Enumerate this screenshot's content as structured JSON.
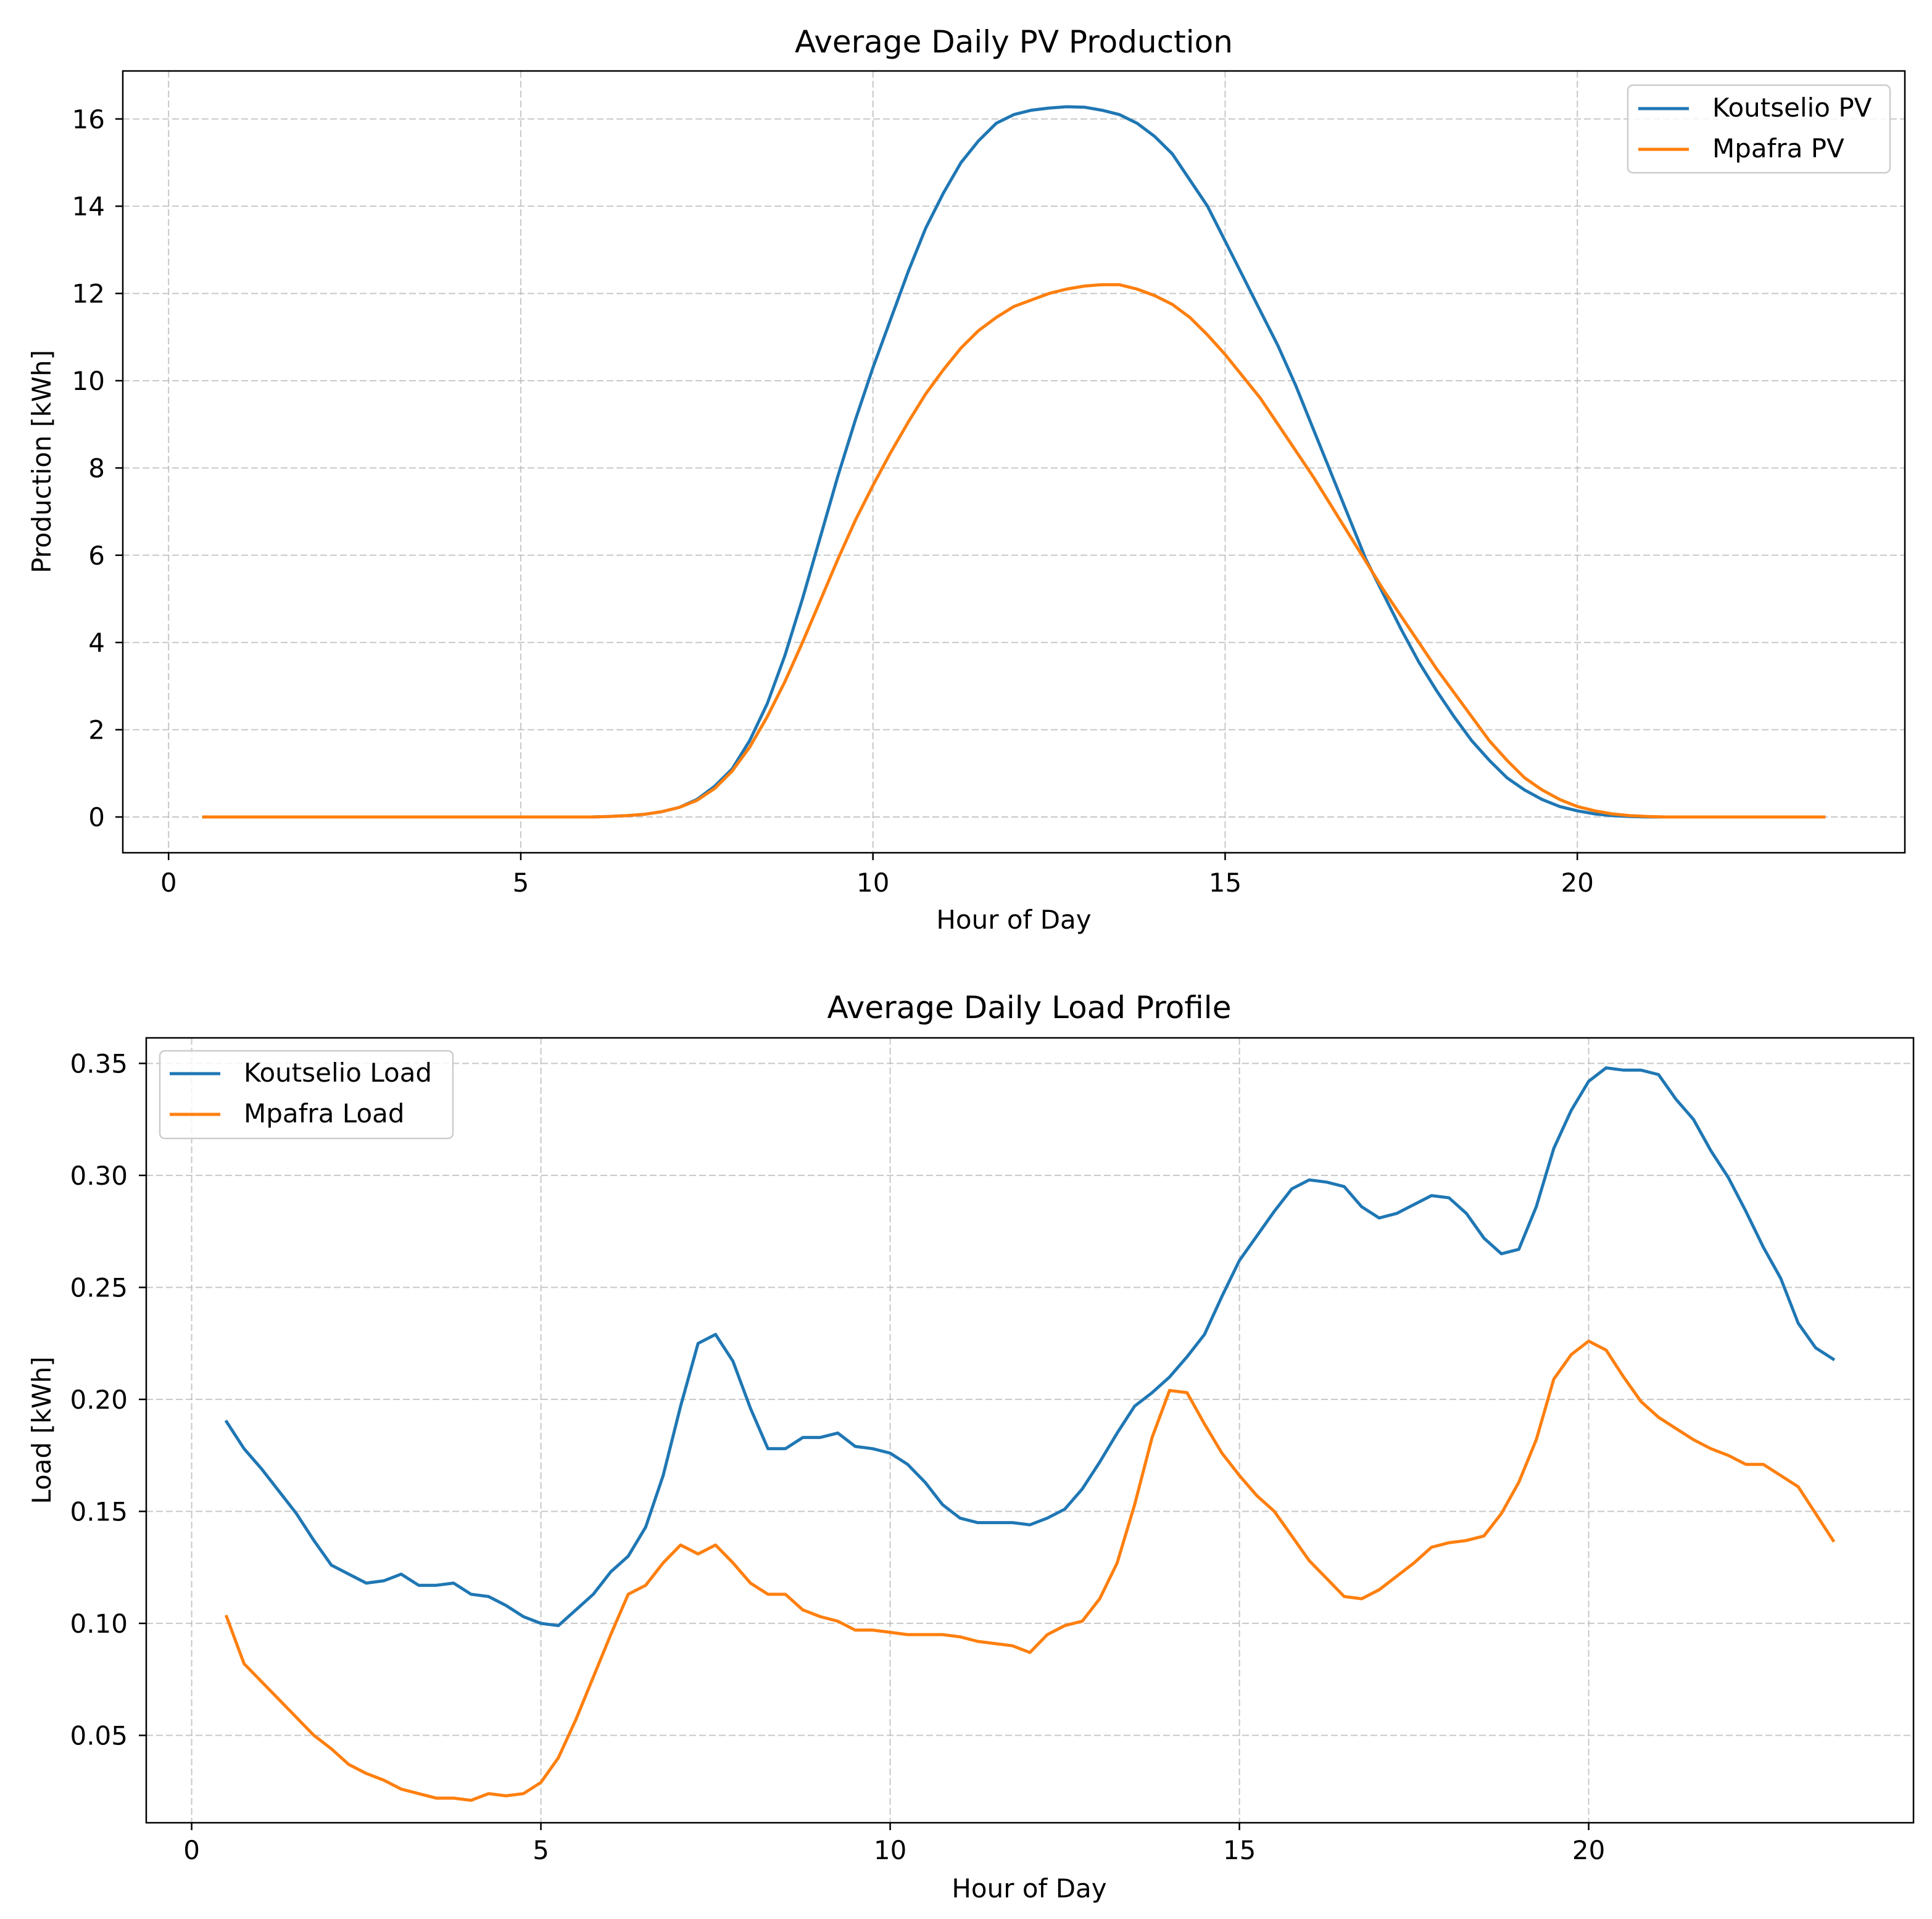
{
  "chart_data": [
    {
      "type": "line",
      "title": "Average Daily PV Production",
      "xlabel": "Hour of Day",
      "ylabel": "Production [kWh]",
      "xlim": [
        -0.65,
        24.65
      ],
      "ylim": [
        -0.82,
        17.1
      ],
      "xticks": [
        0,
        5,
        10,
        15,
        20
      ],
      "xtick_labels": [
        "0",
        "5",
        "10",
        "15",
        "20"
      ],
      "yticks": [
        0,
        2,
        4,
        6,
        8,
        10,
        12,
        14,
        16
      ],
      "ytick_labels": [
        "0",
        "2",
        "4",
        "6",
        "8",
        "10",
        "12",
        "14",
        "16"
      ],
      "grid": true,
      "legend_position": "top-right",
      "x": [
        0.5,
        0.75,
        1.0,
        1.25,
        1.5,
        1.75,
        2.0,
        2.25,
        2.5,
        2.75,
        3.0,
        3.25,
        3.5,
        3.75,
        4.0,
        4.25,
        4.5,
        4.75,
        5.0,
        5.25,
        5.5,
        5.75,
        6.0,
        6.25,
        6.5,
        6.75,
        7.0,
        7.25,
        7.5,
        7.75,
        8.0,
        8.25,
        8.5,
        8.75,
        9.0,
        9.25,
        9.5,
        9.75,
        10.0,
        10.25,
        10.5,
        10.75,
        11.0,
        11.25,
        11.5,
        11.75,
        12.0,
        12.25,
        12.5,
        12.75,
        13.0,
        13.25,
        13.5,
        13.75,
        14.0,
        14.25,
        14.5,
        14.75,
        15.0,
        15.25,
        15.5,
        15.75,
        16.0,
        16.25,
        16.5,
        16.75,
        17.0,
        17.25,
        17.5,
        17.75,
        18.0,
        18.25,
        18.5,
        18.75,
        19.0,
        19.25,
        19.5,
        19.75,
        20.0,
        20.25,
        20.5,
        20.75,
        21.0,
        21.25,
        21.5,
        21.75,
        22.0,
        22.25,
        22.5,
        22.75,
        23.0,
        23.25,
        23.5
      ],
      "series": [
        {
          "name": "Koutselio PV",
          "color": "#1f77b4",
          "values": [
            0,
            0,
            0,
            0,
            0,
            0,
            0,
            0,
            0,
            0,
            0,
            0,
            0,
            0,
            0,
            0,
            0,
            0,
            0,
            0,
            0,
            0,
            0,
            0.01,
            0.03,
            0.06,
            0.12,
            0.22,
            0.4,
            0.7,
            1.1,
            1.75,
            2.6,
            3.7,
            5.0,
            6.4,
            7.8,
            9.1,
            10.3,
            11.4,
            12.5,
            13.5,
            14.3,
            15.0,
            15.5,
            15.9,
            16.1,
            16.2,
            16.25,
            16.28,
            16.27,
            16.2,
            16.1,
            15.9,
            15.6,
            15.2,
            14.6,
            14.0,
            13.2,
            12.4,
            11.6,
            10.8,
            9.9,
            8.9,
            7.9,
            6.9,
            5.9,
            5.1,
            4.3,
            3.55,
            2.9,
            2.3,
            1.75,
            1.3,
            0.9,
            0.62,
            0.4,
            0.24,
            0.14,
            0.07,
            0.03,
            0.01,
            0,
            0,
            0,
            0,
            0,
            0,
            0,
            0,
            0,
            0,
            0
          ]
        },
        {
          "name": "Mpafra PV",
          "color": "#ff7f0e",
          "values": [
            0,
            0,
            0,
            0,
            0,
            0,
            0,
            0,
            0,
            0,
            0,
            0,
            0,
            0,
            0,
            0,
            0,
            0,
            0,
            0,
            0,
            0,
            0,
            0.01,
            0.03,
            0.06,
            0.12,
            0.22,
            0.38,
            0.65,
            1.05,
            1.6,
            2.3,
            3.1,
            4.0,
            4.95,
            5.9,
            6.8,
            7.6,
            8.35,
            9.05,
            9.7,
            10.25,
            10.75,
            11.15,
            11.45,
            11.7,
            11.85,
            12.0,
            12.1,
            12.17,
            12.2,
            12.2,
            12.1,
            11.95,
            11.75,
            11.45,
            11.05,
            10.6,
            10.1,
            9.6,
            9.0,
            8.4,
            7.8,
            7.15,
            6.5,
            5.85,
            5.2,
            4.6,
            4.0,
            3.4,
            2.85,
            2.3,
            1.75,
            1.3,
            0.9,
            0.62,
            0.4,
            0.24,
            0.14,
            0.07,
            0.03,
            0.01,
            0,
            0,
            0,
            0,
            0,
            0,
            0,
            0,
            0,
            0
          ]
        }
      ]
    },
    {
      "type": "line",
      "title": "Average Daily Load Profile",
      "xlabel": "Hour of Day",
      "ylabel": "Load [kWh]",
      "xlim": [
        -0.65,
        24.65
      ],
      "ylim": [
        0.011,
        0.3614
      ],
      "xticks": [
        0,
        5,
        10,
        15,
        20
      ],
      "xtick_labels": [
        "0",
        "5",
        "10",
        "15",
        "20"
      ],
      "yticks": [
        0.05,
        0.1,
        0.15,
        0.2,
        0.25,
        0.3,
        0.35
      ],
      "ytick_labels": [
        "0.05",
        "0.10",
        "0.15",
        "0.20",
        "0.25",
        "0.30",
        "0.35"
      ],
      "grid": true,
      "legend_position": "top-left",
      "x": [
        0.5,
        0.75,
        1.0,
        1.25,
        1.5,
        1.75,
        2.0,
        2.25,
        2.5,
        2.75,
        3.0,
        3.25,
        3.5,
        3.75,
        4.0,
        4.25,
        4.5,
        4.75,
        5.0,
        5.25,
        5.5,
        5.75,
        6.0,
        6.25,
        6.5,
        6.75,
        7.0,
        7.25,
        7.5,
        7.75,
        8.0,
        8.25,
        8.5,
        8.75,
        9.0,
        9.25,
        9.5,
        9.75,
        10.0,
        10.25,
        10.5,
        10.75,
        11.0,
        11.25,
        11.5,
        11.75,
        12.0,
        12.25,
        12.5,
        12.75,
        13.0,
        13.25,
        13.5,
        13.75,
        14.0,
        14.25,
        14.5,
        14.75,
        15.0,
        15.25,
        15.5,
        15.75,
        16.0,
        16.25,
        16.5,
        16.75,
        17.0,
        17.25,
        17.5,
        17.75,
        18.0,
        18.25,
        18.5,
        18.75,
        19.0,
        19.25,
        19.5,
        19.75,
        20.0,
        20.25,
        20.5,
        20.75,
        21.0,
        21.25,
        21.5,
        21.75,
        22.0,
        22.25,
        22.5,
        22.75,
        23.0,
        23.25,
        23.5
      ],
      "series": [
        {
          "name": "Koutselio Load",
          "color": "#1f77b4",
          "values": [
            0.19,
            0.178,
            0.169,
            0.159,
            0.149,
            0.137,
            0.126,
            0.122,
            0.118,
            0.119,
            0.122,
            0.117,
            0.117,
            0.118,
            0.113,
            0.112,
            0.108,
            0.103,
            0.1,
            0.099,
            0.106,
            0.113,
            0.123,
            0.13,
            0.143,
            0.166,
            0.197,
            0.225,
            0.229,
            0.217,
            0.196,
            0.178,
            0.178,
            0.183,
            0.183,
            0.185,
            0.179,
            0.178,
            0.176,
            0.171,
            0.163,
            0.153,
            0.147,
            0.145,
            0.145,
            0.145,
            0.144,
            0.147,
            0.151,
            0.16,
            0.172,
            0.185,
            0.197,
            0.203,
            0.21,
            0.219,
            0.229,
            0.246,
            0.262,
            0.273,
            0.284,
            0.294,
            0.298,
            0.297,
            0.295,
            0.286,
            0.281,
            0.283,
            0.287,
            0.291,
            0.29,
            0.283,
            0.272,
            0.265,
            0.267,
            0.286,
            0.312,
            0.329,
            0.342,
            0.348,
            0.347,
            0.347,
            0.345,
            0.334,
            0.325,
            0.311,
            0.299,
            0.284,
            0.268,
            0.254,
            0.234,
            0.223,
            0.218
          ]
        },
        {
          "name": "Mpafra Load",
          "color": "#ff7f0e",
          "values": [
            0.103,
            0.082,
            0.074,
            0.066,
            0.058,
            0.05,
            0.044,
            0.037,
            0.033,
            0.03,
            0.026,
            0.024,
            0.022,
            0.022,
            0.021,
            0.024,
            0.023,
            0.024,
            0.029,
            0.04,
            0.057,
            0.076,
            0.095,
            0.113,
            0.117,
            0.127,
            0.135,
            0.131,
            0.135,
            0.127,
            0.118,
            0.113,
            0.113,
            0.106,
            0.103,
            0.101,
            0.097,
            0.097,
            0.096,
            0.095,
            0.095,
            0.095,
            0.094,
            0.092,
            0.091,
            0.09,
            0.087,
            0.095,
            0.099,
            0.101,
            0.111,
            0.127,
            0.153,
            0.183,
            0.204,
            0.203,
            0.189,
            0.176,
            0.166,
            0.157,
            0.15,
            0.139,
            0.128,
            0.12,
            0.112,
            0.111,
            0.115,
            0.121,
            0.127,
            0.134,
            0.136,
            0.137,
            0.139,
            0.149,
            0.163,
            0.182,
            0.209,
            0.22,
            0.226,
            0.222,
            0.21,
            0.199,
            0.192,
            0.187,
            0.182,
            0.178,
            0.175,
            0.171,
            0.171,
            0.166,
            0.161,
            0.149,
            0.137
          ]
        }
      ]
    }
  ]
}
